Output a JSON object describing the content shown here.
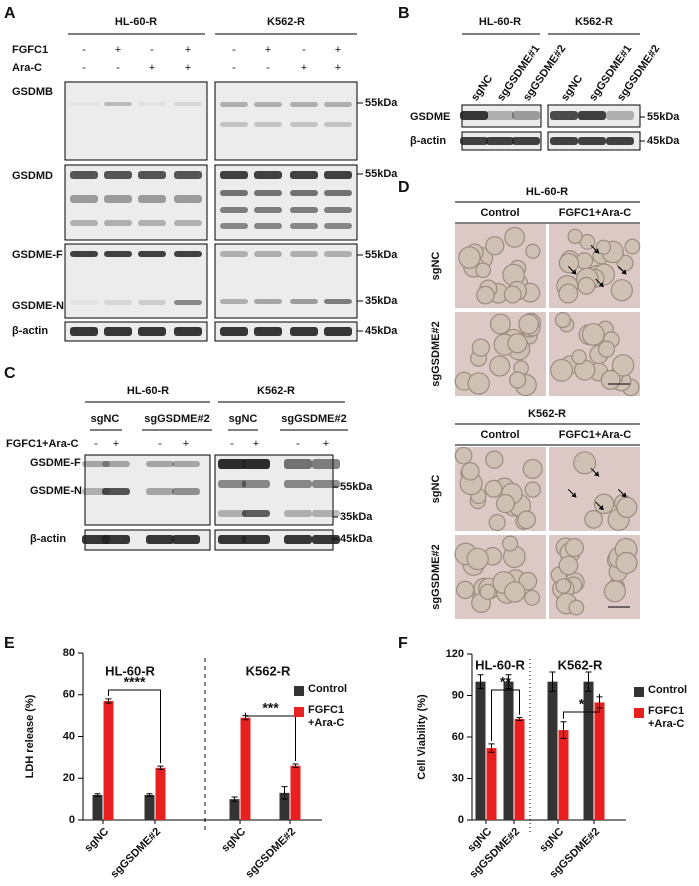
{
  "panel_labels": [
    "A",
    "B",
    "C",
    "D",
    "E",
    "F"
  ],
  "panel_a": {
    "groups": [
      "HL-60-R",
      "K562-R"
    ],
    "rows": [
      "FGFC1",
      "Ara-C"
    ],
    "fgfc1": [
      "-",
      "+",
      "-",
      "+",
      "-",
      "+",
      "-",
      "+"
    ],
    "arac": [
      "-",
      "-",
      "+",
      "+",
      "-",
      "-",
      "+",
      "+"
    ],
    "blots": [
      "GSDMB",
      "GSDMD",
      "GSDME-F",
      "GSDME-N",
      "β-actin"
    ],
    "markers": [
      "55kDa",
      "55kDa",
      "55kDa",
      "35kDa",
      "45kDa"
    ]
  },
  "panel_b": {
    "groups": [
      "HL-60-R",
      "K562-R"
    ],
    "lanes": [
      "sgNC",
      "sgGSDME#1",
      "sgGSDME#2",
      "sgNC",
      "sgGSDME#1",
      "sgGSDME#2"
    ],
    "blots": [
      "GSDME",
      "β-actin"
    ],
    "markers": [
      "55kDa",
      "45kDa"
    ]
  },
  "panel_c": {
    "groups": [
      "HL-60-R",
      "K562-R"
    ],
    "subgroups": [
      "sgNC",
      "sgGSDME#2",
      "sgNC",
      "sgGSDME#2"
    ],
    "treatment": "FGFC1+Ara-C",
    "signs": [
      "-",
      "+",
      "-",
      "+",
      "-",
      "+",
      "-",
      "+"
    ],
    "blots": [
      "GSDME-F",
      "GSDME-N",
      "β-actin"
    ],
    "markers": [
      "55kDa",
      "35kDa",
      "45kDa"
    ]
  },
  "panel_d": {
    "sections": [
      {
        "title": "HL-60-R",
        "columns": [
          "Control",
          "FGFC1+Ara-C"
        ],
        "rows": [
          "sgNC",
          "sgGSDME#2"
        ]
      },
      {
        "title": "K562-R",
        "columns": [
          "Control",
          "FGFC1+Ara-C"
        ],
        "rows": [
          "sgNC",
          "sgGSDME#2"
        ]
      }
    ]
  },
  "chart_data": [
    {
      "type": "bar",
      "ylabel": "LDH release (%)",
      "groups": [
        "HL-60-R",
        "K562-R"
      ],
      "categories": [
        "sgNC",
        "sgGSDME#2",
        "sgNC",
        "sgGSDME#2"
      ],
      "series": [
        {
          "name": "Control",
          "color": "#333333",
          "values": [
            12,
            12,
            10,
            13
          ],
          "errors": [
            0.6,
            0.6,
            1,
            3
          ]
        },
        {
          "name": "FGFC1\n+Ara-C",
          "color": "#e8201f",
          "values": [
            57,
            25,
            49,
            26
          ],
          "errors": [
            1,
            0.8,
            1,
            0.8
          ]
        }
      ],
      "ylim": [
        0,
        80
      ],
      "yticks": [
        0,
        20,
        40,
        60,
        80
      ],
      "annotations": [
        "****",
        "***"
      ]
    },
    {
      "type": "bar",
      "ylabel": "Cell Viability (%)",
      "groups": [
        "HL-60-R",
        "K562-R"
      ],
      "categories": [
        "sgNC",
        "sgGSDME#2",
        "sgNC",
        "sgGSDME#2"
      ],
      "series": [
        {
          "name": "Control",
          "color": "#333333",
          "values": [
            100,
            100,
            100,
            100
          ],
          "errors": [
            5,
            5,
            7,
            7
          ]
        },
        {
          "name": "FGFC1\n+Ara-C",
          "color": "#e8201f",
          "values": [
            52,
            73,
            65,
            85
          ],
          "errors": [
            3,
            1,
            6,
            4
          ]
        }
      ],
      "ylim": [
        0,
        120
      ],
      "yticks": [
        0,
        30,
        60,
        90,
        120
      ],
      "annotations": [
        "**",
        "*"
      ]
    }
  ]
}
